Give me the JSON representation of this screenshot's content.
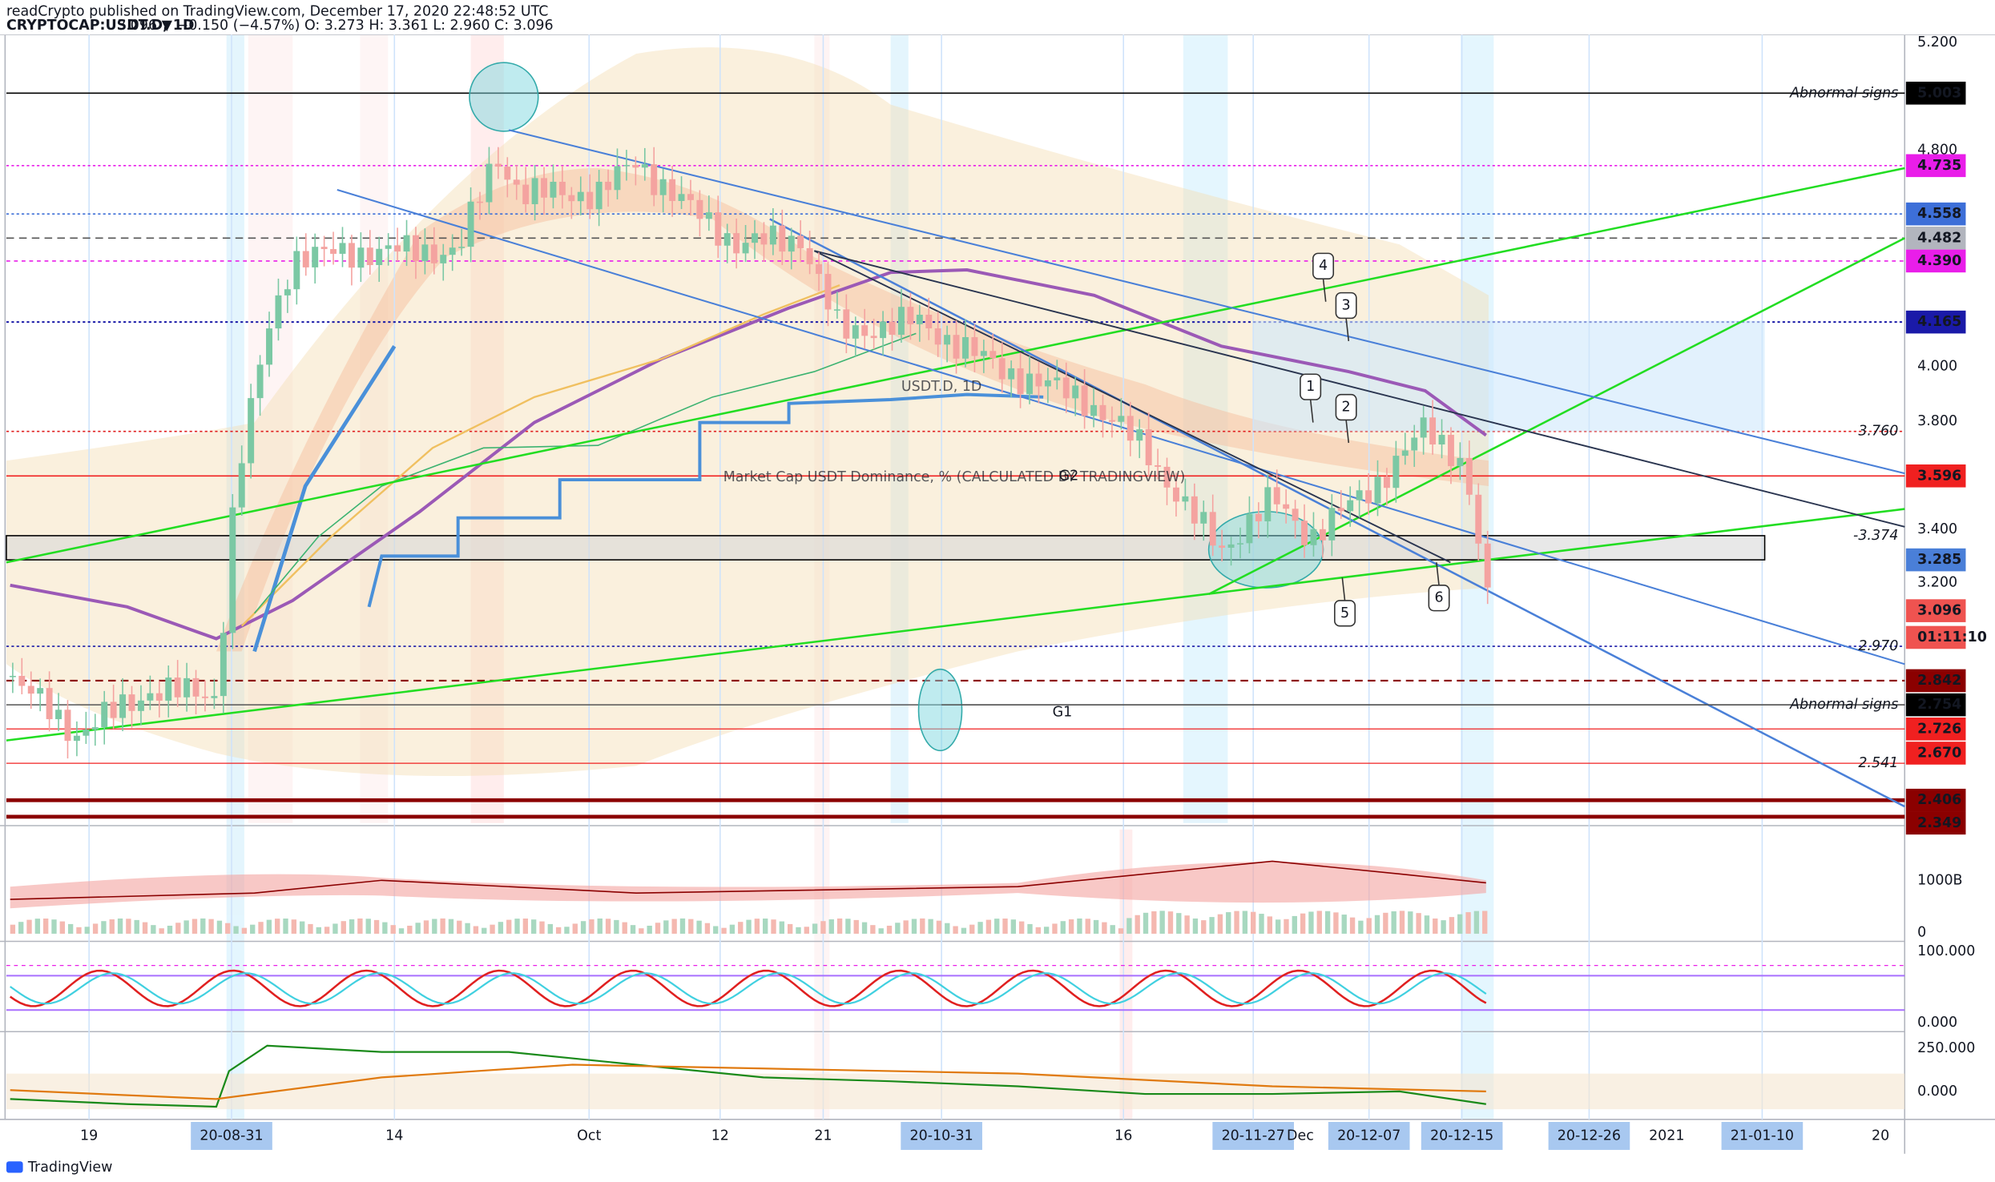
{
  "header": {
    "published": "readCrypto published on TradingView.com, December 17, 2020 22:48:52 UTC",
    "symbol": "CRYPTOCAP:USDT.D, 1D",
    "quote": "3.096 ▼ −0.150 (−4.57%) O: 3.273 H: 3.361 L: 2.960 C: 3.096"
  },
  "watermark": {
    "title": "USDT.D, 1D",
    "subtitle": "Market Cap USDT Dominance, % (CALCULATED BY TRADINGVIEW)"
  },
  "price_axis": [
    "5.200",
    "4.800",
    "4.000",
    "3.800",
    "3.400",
    "3.200"
  ],
  "badges": [
    {
      "label": "5.003",
      "color": "#000000"
    },
    {
      "label": "4.735",
      "color": "#e91ee9"
    },
    {
      "label": "4.558",
      "color": "#3d6fd8"
    },
    {
      "label": "4.482",
      "color": "#b2b5be"
    },
    {
      "label": "4.390",
      "color": "#e91ee9"
    },
    {
      "label": "4.165",
      "color": "#1a1aa8"
    },
    {
      "label": "3.596",
      "color": "#f02020"
    },
    {
      "label": "3.285",
      "color": "#4a7fd8"
    },
    {
      "label": "3.096",
      "color": "#ef5350"
    },
    {
      "label": "01:11:10",
      "color": "#ef5350"
    },
    {
      "label": "2.842",
      "color": "#8b0000"
    },
    {
      "label": "2.754",
      "color": "#000000"
    },
    {
      "label": "2.726",
      "color": "#f02020"
    },
    {
      "label": "2.670",
      "color": "#f02020"
    },
    {
      "label": "2.406",
      "color": "#8b0000"
    },
    {
      "label": "2.349",
      "color": "#8b0000"
    }
  ],
  "level_notes": [
    "Abnormal signs",
    "3.760",
    "-3.374",
    "2.970",
    "Abnormal signs",
    "2.541"
  ],
  "group_labels": [
    "G2",
    "G1"
  ],
  "callouts": [
    "4",
    "3",
    "1",
    "2",
    "5",
    "6"
  ],
  "time_axis": [
    "19",
    "20-08-31",
    "14",
    "Oct",
    "12",
    "21",
    "20-10-31",
    "16",
    "20-11-27",
    "Dec",
    "20-12-07",
    "20-12-15",
    "20-12-26",
    "2021",
    "21-01-10",
    "20"
  ],
  "indicator_axis": [
    "1000B",
    "0",
    "100.000",
    "0.000",
    "250.000",
    "0.000"
  ],
  "footer": "TradingView"
}
